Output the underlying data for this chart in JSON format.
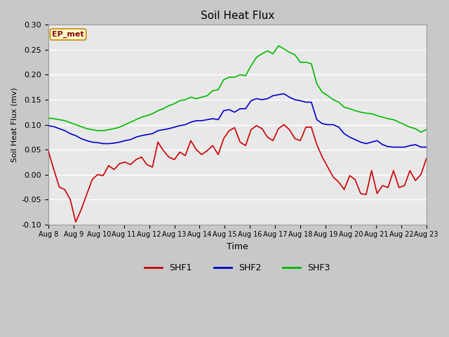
{
  "title": "Soil Heat Flux",
  "xlabel": "Time",
  "ylabel": "Soil Heat Flux (mv)",
  "ylim": [
    -0.1,
    0.3
  ],
  "yticks": [
    -0.1,
    -0.05,
    0.0,
    0.05,
    0.1,
    0.15,
    0.2,
    0.25,
    0.3
  ],
  "xlabels": [
    "Aug 8",
    "Aug 9",
    "Aug 10",
    "Aug 11",
    "Aug 12",
    "Aug 13",
    "Aug 14",
    "Aug 15",
    "Aug 16",
    "Aug 17",
    "Aug 18",
    "Aug 19",
    "Aug 20",
    "Aug 21",
    "Aug 22",
    "Aug 23"
  ],
  "n_days": 16,
  "bg_color": "#e8e8e8",
  "grid_color": "#ffffff",
  "fig_bg_color": "#c8c8c8",
  "shf1_color": "#cc0000",
  "shf2_color": "#0000cc",
  "shf3_color": "#00bb00",
  "annotation_text": "EP_met",
  "annotation_bg": "#ffffcc",
  "annotation_border": "#cc8800",
  "annotation_text_color": "#8b0000",
  "shf1": [
    0.047,
    0.01,
    -0.025,
    -0.03,
    -0.05,
    -0.095,
    -0.07,
    -0.04,
    -0.01,
    0.0,
    -0.002,
    0.018,
    0.01,
    0.022,
    0.025,
    0.02,
    0.03,
    0.035,
    0.02,
    0.015,
    0.065,
    0.048,
    0.035,
    0.03,
    0.045,
    0.038,
    0.068,
    0.05,
    0.04,
    0.048,
    0.058,
    0.04,
    0.072,
    0.088,
    0.094,
    0.065,
    0.058,
    0.09,
    0.098,
    0.092,
    0.075,
    0.068,
    0.092,
    0.1,
    0.09,
    0.072,
    0.068,
    0.095,
    0.095,
    0.06,
    0.035,
    0.015,
    -0.005,
    -0.015,
    -0.03,
    -0.002,
    -0.01,
    -0.038,
    -0.04,
    0.008,
    -0.038,
    -0.022,
    -0.026,
    0.008,
    -0.026,
    -0.022,
    0.008,
    -0.012,
    0.0,
    0.032
  ],
  "shf2": [
    0.098,
    0.096,
    0.092,
    0.088,
    0.082,
    0.078,
    0.072,
    0.068,
    0.065,
    0.064,
    0.062,
    0.062,
    0.063,
    0.065,
    0.068,
    0.07,
    0.075,
    0.078,
    0.08,
    0.082,
    0.088,
    0.09,
    0.092,
    0.095,
    0.098,
    0.1,
    0.105,
    0.108,
    0.108,
    0.11,
    0.112,
    0.11,
    0.128,
    0.13,
    0.125,
    0.132,
    0.132,
    0.148,
    0.152,
    0.15,
    0.152,
    0.158,
    0.16,
    0.162,
    0.155,
    0.15,
    0.148,
    0.145,
    0.145,
    0.11,
    0.102,
    0.1,
    0.1,
    0.095,
    0.082,
    0.075,
    0.07,
    0.065,
    0.062,
    0.065,
    0.068,
    0.06,
    0.056,
    0.055,
    0.055,
    0.055,
    0.058,
    0.06,
    0.055,
    0.055
  ],
  "shf3": [
    0.113,
    0.112,
    0.11,
    0.108,
    0.104,
    0.1,
    0.096,
    0.092,
    0.09,
    0.088,
    0.088,
    0.09,
    0.092,
    0.095,
    0.1,
    0.105,
    0.11,
    0.115,
    0.118,
    0.122,
    0.128,
    0.132,
    0.138,
    0.142,
    0.148,
    0.15,
    0.155,
    0.152,
    0.155,
    0.158,
    0.168,
    0.17,
    0.19,
    0.195,
    0.195,
    0.2,
    0.198,
    0.218,
    0.235,
    0.242,
    0.248,
    0.242,
    0.258,
    0.252,
    0.245,
    0.24,
    0.225,
    0.225,
    0.222,
    0.182,
    0.165,
    0.158,
    0.15,
    0.145,
    0.135,
    0.132,
    0.128,
    0.125,
    0.123,
    0.122,
    0.118,
    0.115,
    0.112,
    0.11,
    0.105,
    0.1,
    0.095,
    0.092,
    0.085,
    0.09
  ]
}
